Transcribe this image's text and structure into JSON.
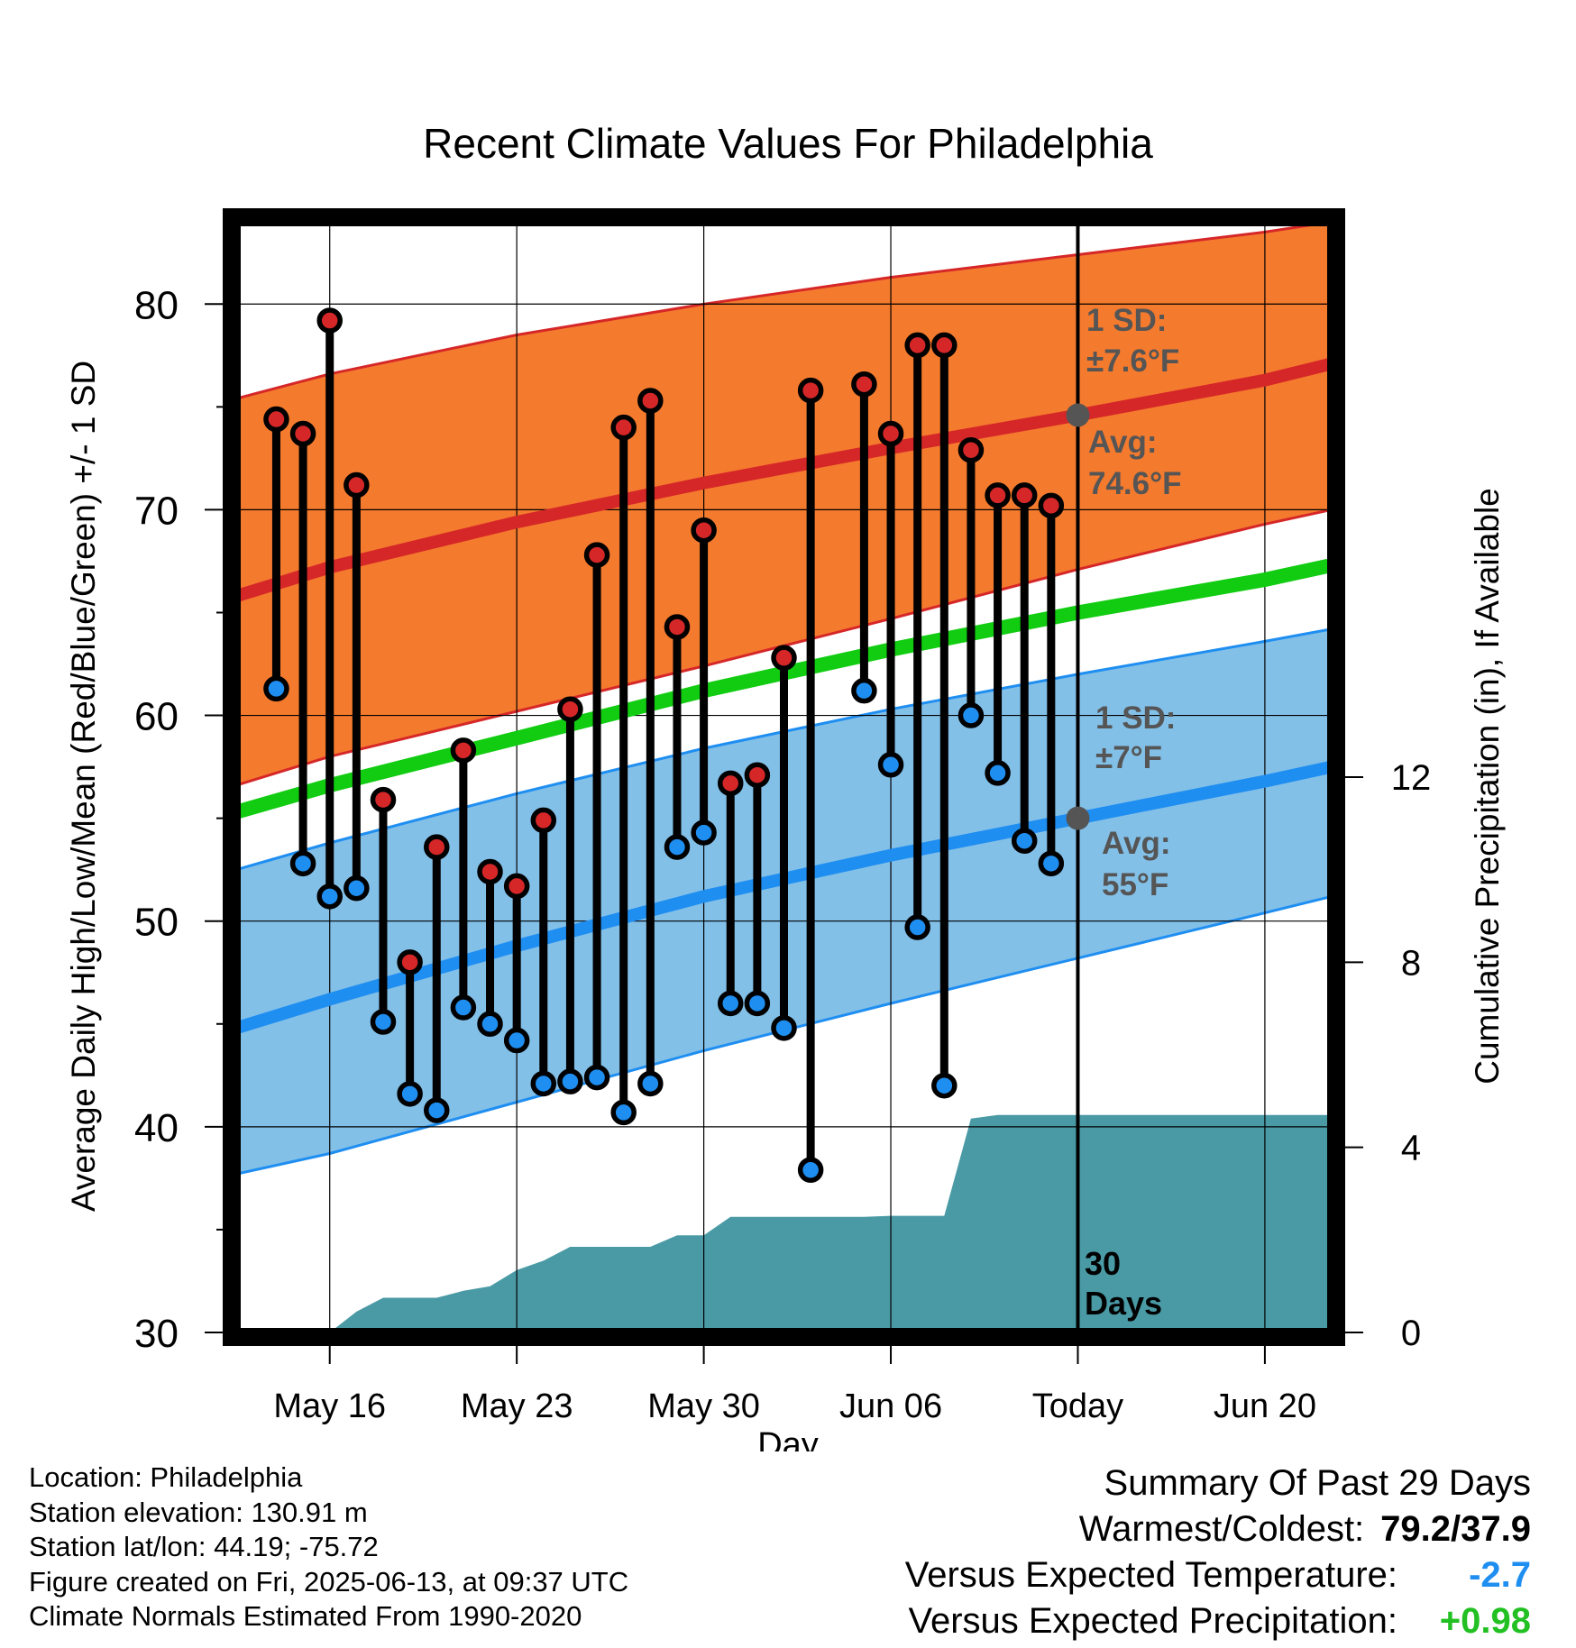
{
  "chart_data": {
    "type": "line",
    "title": "Recent Climate Values For Philadelphia",
    "xlabel": "Day",
    "ylabel": "Average Daily High/Low/Mean (Red/Blue/Green) +/- 1 SD",
    "y2label": "Cumulative Precipitation (in), If Available",
    "ylim": [
      30,
      84
    ],
    "y2lim": [
      0,
      24
    ],
    "yticks": [
      30,
      40,
      50,
      60,
      70,
      80
    ],
    "y2ticks": [
      0,
      4,
      8,
      12
    ],
    "x_day_range": [
      12.5,
      53.5
    ],
    "xticks": [
      {
        "day": 16,
        "label": "May 16"
      },
      {
        "day": 23,
        "label": "May 23"
      },
      {
        "day": 30,
        "label": "May 30"
      },
      {
        "day": 37,
        "label": "Jun 06"
      },
      {
        "day": 44,
        "label": "Today"
      },
      {
        "day": 51,
        "label": "Jun 20"
      }
    ],
    "grid": true,
    "today_day": 44,
    "today_label": "30\nDays",
    "normals": {
      "day": [
        12.5,
        16,
        23,
        30,
        37,
        44,
        51,
        53.5
      ],
      "high_mean": [
        65.8,
        67.2,
        69.4,
        71.3,
        73.0,
        74.6,
        76.3,
        77.1
      ],
      "high_upper": [
        75.4,
        76.6,
        78.5,
        80.0,
        81.3,
        82.4,
        83.5,
        84.0
      ],
      "high_lower": [
        56.6,
        58.0,
        60.2,
        62.4,
        64.7,
        67.1,
        69.3,
        70.0
      ],
      "mean": [
        55.3,
        56.6,
        58.9,
        61.2,
        63.2,
        65.0,
        66.6,
        67.3
      ],
      "low_mean": [
        44.8,
        46.2,
        48.8,
        51.2,
        53.2,
        55.0,
        56.8,
        57.5
      ],
      "low_upper": [
        52.5,
        53.8,
        56.2,
        58.4,
        60.3,
        62.0,
        63.6,
        64.2
      ],
      "low_lower": [
        37.7,
        38.7,
        41.2,
        43.7,
        46.0,
        48.2,
        50.4,
        51.2
      ]
    },
    "annotations": [
      {
        "text_line1": "1 SD:",
        "text_line2": "±7.6°F",
        "anchor": "high"
      },
      {
        "text_line1": "Avg:",
        "text_line2": "74.6°F",
        "anchor": "high_mean"
      },
      {
        "text_line1": "1 SD:",
        "text_line2": "±7°F",
        "anchor": "low"
      },
      {
        "text_line1": "Avg:",
        "text_line2": "55°F",
        "anchor": "low_mean"
      }
    ],
    "series": [
      {
        "name": "High",
        "color": "#d62728",
        "day": [
          14,
          15,
          16,
          17,
          18,
          19,
          20,
          21,
          22,
          23,
          24,
          25,
          26,
          27,
          28,
          29,
          30,
          31,
          32,
          33,
          34,
          36,
          37,
          38,
          39,
          40,
          41,
          42,
          43
        ],
        "values": [
          74.4,
          73.7,
          79.2,
          71.2,
          55.9,
          48.0,
          53.6,
          58.3,
          52.4,
          51.7,
          54.9,
          60.3,
          67.8,
          74.0,
          75.3,
          64.3,
          69.0,
          56.7,
          57.1,
          62.8,
          75.8,
          76.1,
          73.7,
          78.0,
          78.0,
          72.9,
          70.7,
          70.7,
          70.2
        ]
      },
      {
        "name": "Low",
        "color": "#1f8ef1",
        "day": [
          14,
          15,
          16,
          17,
          18,
          19,
          20,
          21,
          22,
          23,
          24,
          25,
          26,
          27,
          28,
          29,
          30,
          31,
          32,
          33,
          34,
          36,
          37,
          38,
          39,
          40,
          41,
          42,
          43
        ],
        "values": [
          61.3,
          52.8,
          51.2,
          51.6,
          45.1,
          41.6,
          40.8,
          45.8,
          45.0,
          44.2,
          42.1,
          42.2,
          42.4,
          40.7,
          42.1,
          53.6,
          54.3,
          46.0,
          46.0,
          44.8,
          37.9,
          61.2,
          57.6,
          49.7,
          42.0,
          60.0,
          57.2,
          53.9,
          52.8
        ]
      }
    ],
    "precip": {
      "name": "Cumulative Precipitation",
      "color": "#4a9aa5",
      "day": [
        16,
        17,
        18,
        19,
        20,
        21,
        22,
        23,
        24,
        25,
        26,
        27,
        28,
        29,
        30,
        31,
        32,
        33,
        34,
        35,
        36,
        37,
        38,
        39,
        40,
        41,
        42,
        43,
        44,
        45,
        46,
        47,
        48,
        49,
        50,
        51,
        52,
        53.5
      ],
      "values": [
        0,
        0.45,
        0.75,
        0.75,
        0.75,
        0.9,
        1.0,
        1.35,
        1.55,
        1.85,
        1.85,
        1.85,
        1.85,
        2.1,
        2.1,
        2.5,
        2.5,
        2.5,
        2.5,
        2.5,
        2.5,
        2.52,
        2.52,
        2.52,
        4.62,
        4.7,
        4.7,
        4.7,
        4.7,
        4.7,
        4.7,
        4.7,
        4.7,
        4.7,
        4.7,
        4.7,
        4.7,
        4.7
      ]
    }
  },
  "footer": {
    "location": "Location: Philadelphia",
    "elevation": "Station elevation: 130.91 m",
    "latlon": "Station lat/lon: 44.19; -75.72",
    "created": "Figure created on Fri, 2025-06-13, at 09:37 UTC",
    "normals_note": "Climate Normals Estimated From 1990-2020"
  },
  "summary": {
    "title": "Summary Of Past 29 Days",
    "warmest_label": "Warmest/Coldest:",
    "warmest_value": "79.2/37.9",
    "temp_label": "Versus Expected Temperature:",
    "temp_value": "-2.7",
    "temp_color": "#1f8ef1",
    "precip_label": "Versus Expected Precipitation:",
    "precip_value": "+0.98",
    "precip_color": "#22c022"
  }
}
